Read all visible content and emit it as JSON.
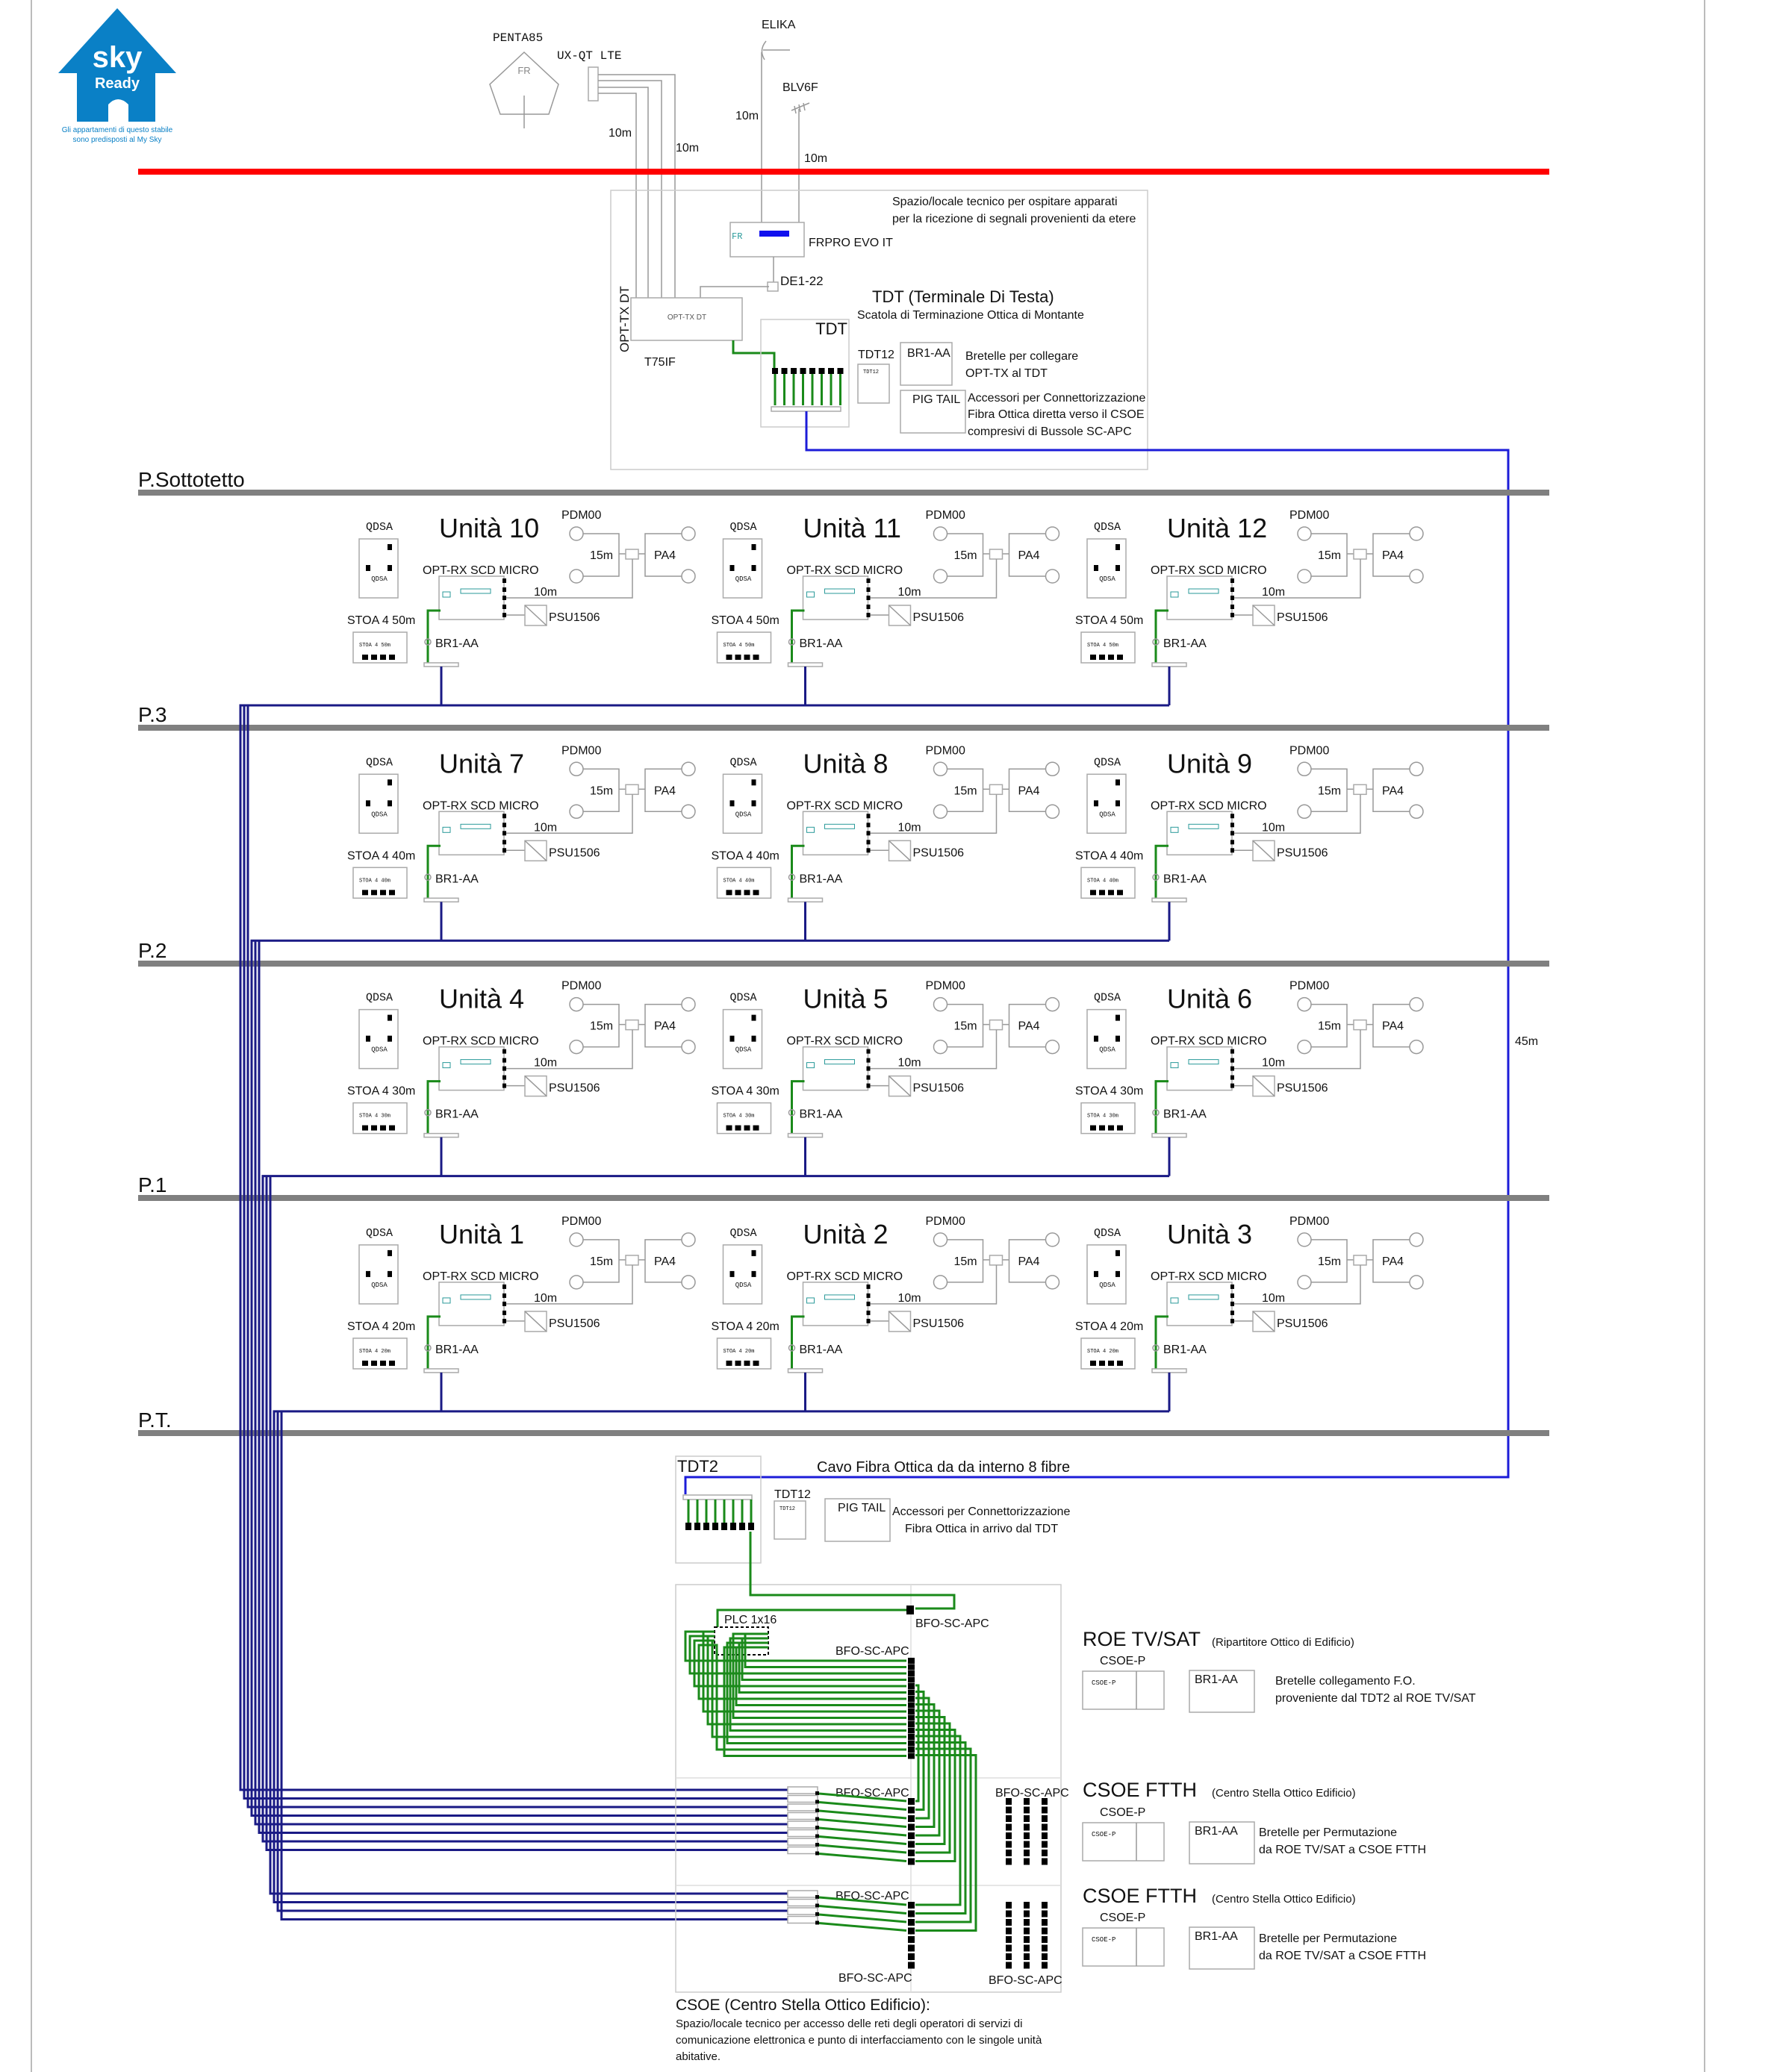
{
  "logo": {
    "line1": "sky",
    "line2": "Ready",
    "caption1": "Gli appartamenti di questo stabile",
    "caption2": "sono predisposti al My Sky",
    "color": "#0a80c6"
  },
  "antennas": {
    "penta": "PENTA85",
    "penta_mark": "FR",
    "uxqt": "UX-QT LTE",
    "elika": "ELIKA",
    "blv": "BLV6F",
    "len_a": "10m",
    "len_b": "10m",
    "len_c": "10m",
    "len_d": "10m"
  },
  "tech_room": {
    "desc1": "Spazio/locale tecnico per ospitare apparati",
    "desc2": "per la ricezione di segnali provenienti da etere",
    "frpro": "FRPRO EVO IT",
    "frpro_mark": "FR",
    "de": "DE1-22",
    "opttx_vertical": "OPT-TX DT",
    "opttx_inner": "OPT-TX DT",
    "t75": "T75IF",
    "tdt_title": "TDT  (Terminale Di Testa)",
    "tdt_sub": "Scatola di Terminazione Ottica di Montante",
    "tdt_box": "TDT",
    "tdt12": "TDT12",
    "tdt12_inner": "TDT12",
    "br1": "BR1-AA",
    "br1_desc1": "Bretelle per collegare",
    "br1_desc2": "OPT-TX al TDT",
    "pig": "PIG TAIL",
    "pig_desc1": "Accessori per Connettorizzazione",
    "pig_desc2": "Fibra Ottica diretta verso il CSOE",
    "pig_desc3": "compresivi di Bussole SC-APC"
  },
  "floors": [
    "P.Sottotetto",
    "P.3",
    "P.2",
    "P.1",
    "P.T."
  ],
  "riser_length": "45m",
  "unit_labels": {
    "qdsa": "QDSA",
    "pdm": "PDM00",
    "len15": "15m",
    "pa4": "PA4",
    "optrx": "OPT-RX SCD MICRO",
    "len10": "10m",
    "psu": "PSU1506",
    "br1": "BR1-AA"
  },
  "unit_rows": [
    {
      "stoa": "STOA 4 50m",
      "units": [
        "Unità 10",
        "Unità 11",
        "Unità 12"
      ]
    },
    {
      "stoa": "STOA 4 40m",
      "units": [
        "Unità 7",
        "Unità 8",
        "Unità 9"
      ]
    },
    {
      "stoa": "STOA 4 30m",
      "units": [
        "Unità 4",
        "Unità 5",
        "Unità 6"
      ]
    },
    {
      "stoa": "STOA 4 20m",
      "units": [
        "Unità 1",
        "Unità 2",
        "Unità 3"
      ]
    }
  ],
  "ground": {
    "tdt2": "TDT2",
    "cable": "Cavo Fibra Ottica da da interno 8 fibre",
    "tdt12": "TDT12",
    "tdt12_inner": "TDT12",
    "pig": "PIG TAIL",
    "pig_desc1": "Accessori per Connettorizzazione",
    "pig_desc2": "Fibra Ottica in arrivo dal TDT",
    "plc": "PLC 1x16",
    "bfo": "BFO-SC-APC",
    "csoe_title": "CSOE (Centro Stella Ottico Edificio):",
    "csoe_desc1": "Spazio/locale tecnico per accesso delle reti degli operatori di servizi di",
    "csoe_desc2": "comunicazione elettronica e punto di interfacciamento con le singole unità",
    "csoe_desc3": "abitative."
  },
  "legend": {
    "roe_title": "ROE TV/SAT",
    "roe_sub": "(Ripartitore Ottico di Edificio)",
    "csoep": "CSOE-P",
    "csoep_inner": "CSOE-P",
    "br1": "BR1-AA",
    "roe_desc1": "Bretelle collegamento F.O.",
    "roe_desc2": "proveniente dal TDT2 al  ROE TV/SAT",
    "ftth_title": "CSOE FTTH",
    "ftth_sub": "(Centro Stella Ottico Edificio)",
    "ftth_desc1": "Bretelle per Permutazione",
    "ftth_desc2": "da ROE TV/SAT a CSOE FTTH"
  },
  "colors": {
    "red_line": "#ff0000",
    "fiber_green": "#1a8a1a",
    "fiber_blue": "#1c1cd8",
    "riser_navy": "#1a1a85",
    "floor_gray": "#808080"
  }
}
